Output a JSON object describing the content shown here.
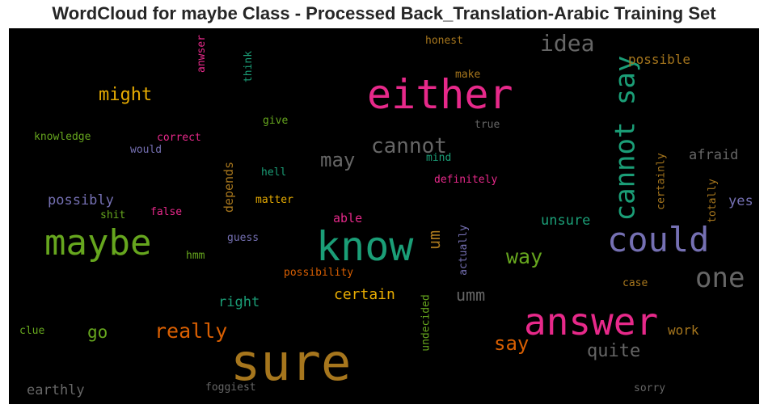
{
  "title": "WordCloud for maybe Class - Processed Back_Translation-Arabic Training Set",
  "palette": {
    "background": "#000000",
    "pink": "#e7298a",
    "teal": "#1b9e77",
    "olive": "#66a61e",
    "purple": "#7570b3",
    "gold": "#a6761d",
    "orange": "#d95f02",
    "yellow": "#e6ab02",
    "gray": "#666666"
  },
  "words": [
    {
      "text": "either",
      "color": "#e7298a"
    },
    {
      "text": "know",
      "color": "#1b9e77"
    },
    {
      "text": "sure",
      "color": "#a6761d"
    },
    {
      "text": "answer",
      "color": "#e7298a"
    },
    {
      "text": "maybe",
      "color": "#66a61e"
    },
    {
      "text": "could",
      "color": "#7570b3"
    },
    {
      "text": "cannot say",
      "color": "#1b9e77"
    },
    {
      "text": "one",
      "color": "#666666"
    },
    {
      "text": "idea",
      "color": "#666666"
    },
    {
      "text": "cannot",
      "color": "#666666"
    },
    {
      "text": "might",
      "color": "#e6ab02"
    },
    {
      "text": "may",
      "color": "#666666"
    },
    {
      "text": "really",
      "color": "#d95f02"
    },
    {
      "text": "quite",
      "color": "#666666"
    },
    {
      "text": "way",
      "color": "#66a61e"
    },
    {
      "text": "say",
      "color": "#d95f02"
    },
    {
      "text": "go",
      "color": "#66a61e"
    },
    {
      "text": "umm",
      "color": "#666666"
    },
    {
      "text": "um",
      "color": "#a6761d"
    },
    {
      "text": "certain",
      "color": "#e6ab02"
    },
    {
      "text": "possibly",
      "color": "#7570b3"
    },
    {
      "text": "right",
      "color": "#1b9e77"
    },
    {
      "text": "earthly",
      "color": "#666666"
    },
    {
      "text": "unsure",
      "color": "#1b9e77"
    },
    {
      "text": "afraid",
      "color": "#666666"
    },
    {
      "text": "possible",
      "color": "#a6761d"
    },
    {
      "text": "yes",
      "color": "#7570b3"
    },
    {
      "text": "work",
      "color": "#a6761d"
    },
    {
      "text": "depends",
      "color": "#a6761d"
    },
    {
      "text": "able",
      "color": "#e7298a"
    },
    {
      "text": "knowledge",
      "color": "#66a61e"
    },
    {
      "text": "correct",
      "color": "#e7298a"
    },
    {
      "text": "would",
      "color": "#7570b3"
    },
    {
      "text": "give",
      "color": "#66a61e"
    },
    {
      "text": "hell",
      "color": "#1b9e77"
    },
    {
      "text": "matter",
      "color": "#e6ab02"
    },
    {
      "text": "mind",
      "color": "#1b9e77"
    },
    {
      "text": "definitely",
      "color": "#e7298a"
    },
    {
      "text": "true",
      "color": "#666666"
    },
    {
      "text": "make",
      "color": "#a6761d"
    },
    {
      "text": "honest",
      "color": "#a6761d"
    },
    {
      "text": "anwser",
      "color": "#e7298a"
    },
    {
      "text": "think",
      "color": "#1b9e77"
    },
    {
      "text": "shit",
      "color": "#66a61e"
    },
    {
      "text": "false",
      "color": "#e7298a"
    },
    {
      "text": "guess",
      "color": "#7570b3"
    },
    {
      "text": "hmm",
      "color": "#66a61e"
    },
    {
      "text": "possibility",
      "color": "#d95f02"
    },
    {
      "text": "actually",
      "color": "#7570b3"
    },
    {
      "text": "undecided",
      "color": "#66a61e"
    },
    {
      "text": "case",
      "color": "#a6761d"
    },
    {
      "text": "clue",
      "color": "#66a61e"
    },
    {
      "text": "foggiest",
      "color": "#666666"
    },
    {
      "text": "sorry",
      "color": "#666666"
    },
    {
      "text": "certainly",
      "color": "#a6761d"
    },
    {
      "text": "totally",
      "color": "#a6761d"
    }
  ]
}
